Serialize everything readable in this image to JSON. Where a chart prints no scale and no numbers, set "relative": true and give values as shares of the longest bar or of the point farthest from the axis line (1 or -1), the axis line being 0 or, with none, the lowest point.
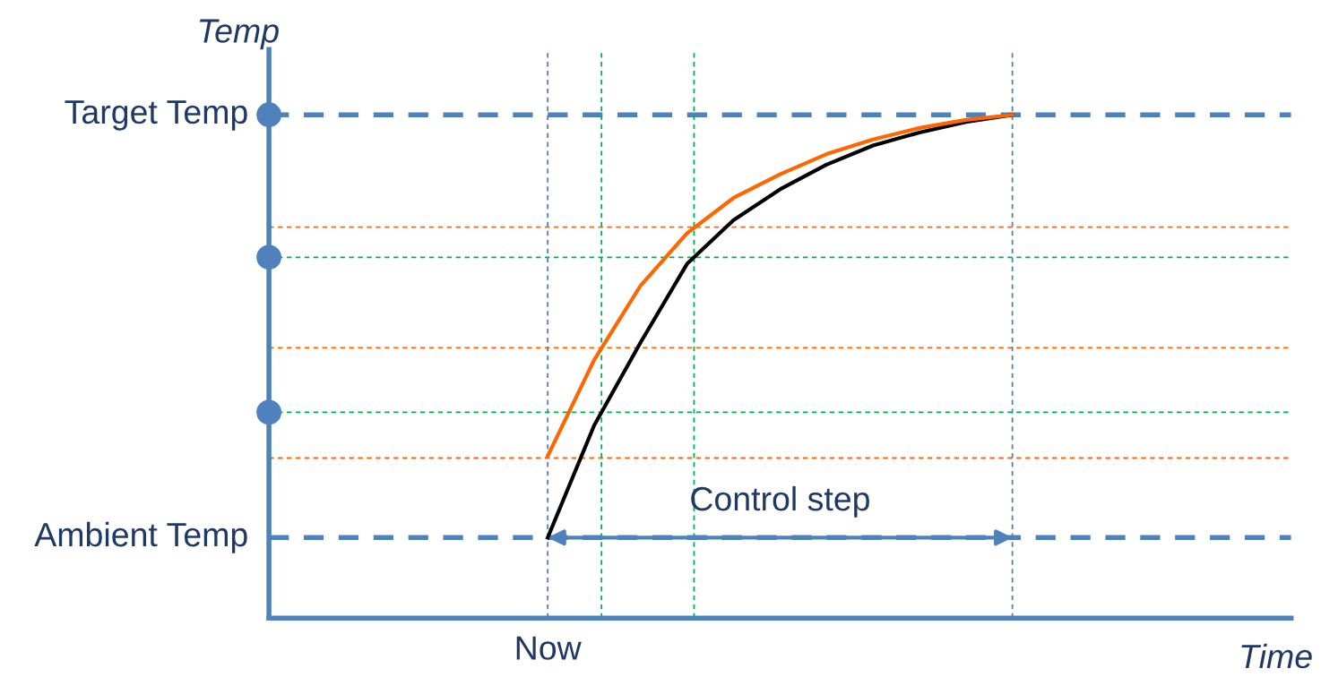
{
  "chart_data": {
    "type": "line",
    "relative": true,
    "xlabel": "Time",
    "ylabel": "Temp",
    "categories": [
      null,
      null,
      null,
      null,
      null,
      null,
      null,
      null,
      null,
      null,
      null,
      null,
      null,
      null,
      null,
      null,
      null,
      null,
      null,
      null,
      null,
      null
    ],
    "series": [
      {
        "color": "#000000",
        "values": [
          null,
          null,
          null,
          null,
          null,
          null,
          0.16,
          0.383,
          0.548,
          0.704,
          0.791,
          0.852,
          0.901,
          0.939,
          0.965,
          0.986,
          1,
          null,
          null,
          null,
          null,
          null
        ]
      },
      {
        "color": "#ff6600",
        "values": [
          null,
          null,
          null,
          null,
          null,
          null,
          0.322,
          0.513,
          0.661,
          0.765,
          0.835,
          0.882,
          0.922,
          0.951,
          0.974,
          0.99,
          1,
          null,
          null,
          null,
          null,
          null
        ]
      }
    ],
    "marker": "none",
    "line_style": "solid",
    "ref_lines": [
      {
        "axis": "y",
        "value": 1,
        "label": "Target Temp",
        "color": "#4f81bd",
        "line_style": "dashed"
      },
      {
        "axis": "y",
        "value": 0.16,
        "label": "Ambient Temp",
        "color": "#4f81bd",
        "line_style": "dashed"
      },
      {
        "axis": "y",
        "value": 0.717,
        "color": "#00b050",
        "line_style": "dashed"
      },
      {
        "axis": "y",
        "value": 0.409,
        "color": "#00b050",
        "line_style": "dashed"
      },
      {
        "axis": "y",
        "value": 0.777,
        "color": "#ff6600",
        "line_style": "dashed"
      },
      {
        "axis": "y",
        "value": 0.537,
        "color": "#ff6600",
        "line_style": "dashed"
      },
      {
        "axis": "y",
        "value": 0.318,
        "color": "#ff6600",
        "line_style": "dashed"
      }
    ],
    "annotations": [
      "Control step",
      "Now"
    ]
  }
}
